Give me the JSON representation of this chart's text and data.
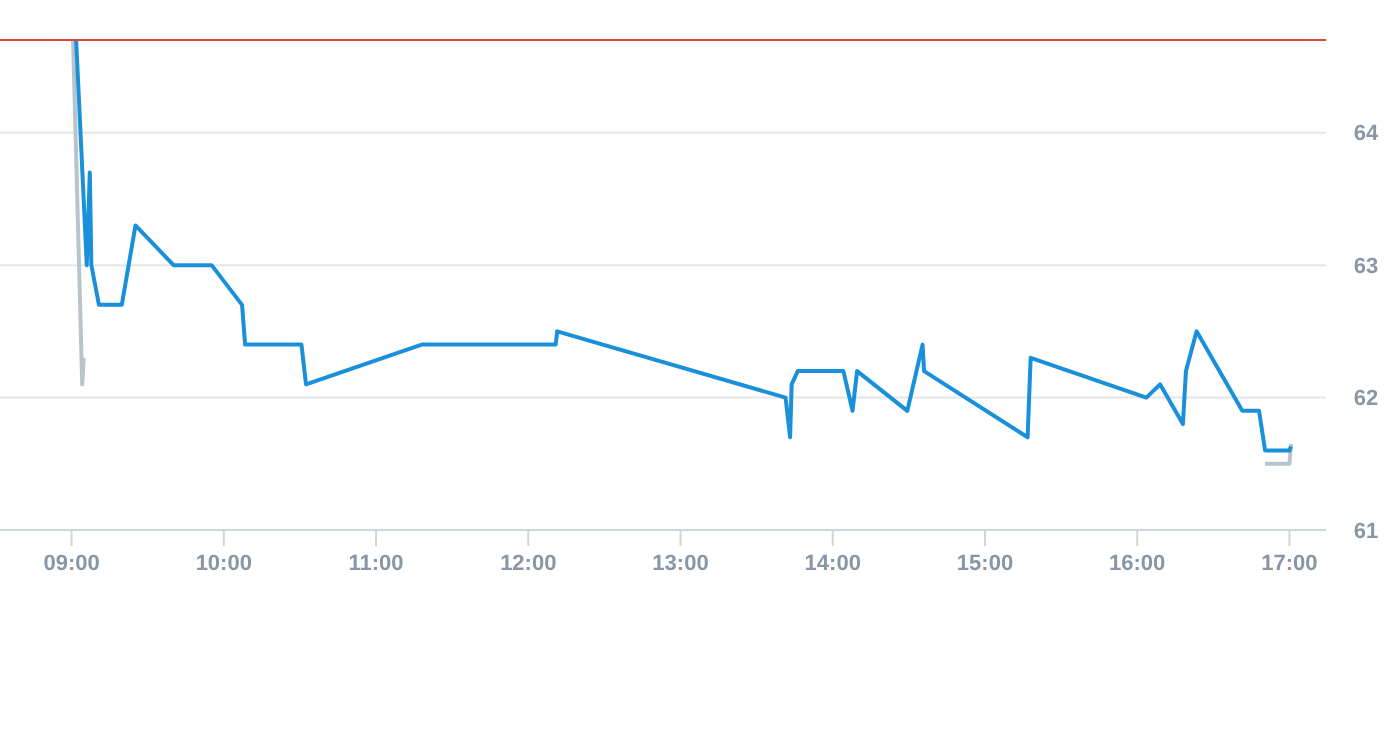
{
  "chart_data": {
    "type": "line",
    "xlim": [
      8.53,
      17.24
    ],
    "ylim": [
      61,
      64.7
    ],
    "xticks": [
      {
        "value": 9,
        "label": "09:00"
      },
      {
        "value": 10,
        "label": "10:00"
      },
      {
        "value": 11,
        "label": "11:00"
      },
      {
        "value": 12,
        "label": "12:00"
      },
      {
        "value": 13,
        "label": "13:00"
      },
      {
        "value": 14,
        "label": "14:00"
      },
      {
        "value": 15,
        "label": "15:00"
      },
      {
        "value": 16,
        "label": "16:00"
      },
      {
        "value": 17,
        "label": "17:00"
      }
    ],
    "yticks": [
      61,
      62,
      63,
      64
    ],
    "grid": "y",
    "marker": "none",
    "line_style": "solid",
    "ref_lines": [
      {
        "axis": "y",
        "value": 64.7,
        "color": "#d9463c"
      }
    ],
    "series": [
      {
        "color": "#b8c4cc",
        "x": [
          9.01,
          9.07,
          9.08,
          null,
          16.84,
          17.0,
          17.01
        ],
        "values": [
          64.7,
          62.1,
          62.3,
          null,
          61.5,
          61.5,
          61.65
        ]
      },
      {
        "color": "#1a90db",
        "x": [
          9.03,
          9.1,
          9.12,
          9.13,
          9.18,
          9.33,
          9.42,
          9.67,
          9.92,
          10.12,
          10.14,
          10.51,
          10.54,
          11.3,
          12.18,
          12.19,
          13.69,
          13.72,
          13.73,
          13.77,
          14.07,
          14.13,
          14.16,
          14.49,
          14.59,
          14.6,
          15.28,
          15.3,
          16.06,
          16.15,
          16.3,
          16.32,
          16.39,
          16.69,
          16.8,
          16.84,
          17.0,
          17.01
        ],
        "values": [
          64.7,
          63.0,
          63.7,
          63.0,
          62.7,
          62.7,
          63.3,
          63.0,
          63.0,
          62.7,
          62.4,
          62.4,
          62.1,
          62.4,
          62.4,
          62.5,
          62.0,
          61.7,
          62.1,
          62.2,
          62.2,
          61.9,
          62.2,
          61.9,
          62.4,
          62.2,
          61.7,
          62.3,
          62.0,
          62.1,
          61.8,
          62.2,
          62.5,
          61.9,
          61.9,
          61.6,
          61.6,
          61.63
        ]
      }
    ]
  }
}
